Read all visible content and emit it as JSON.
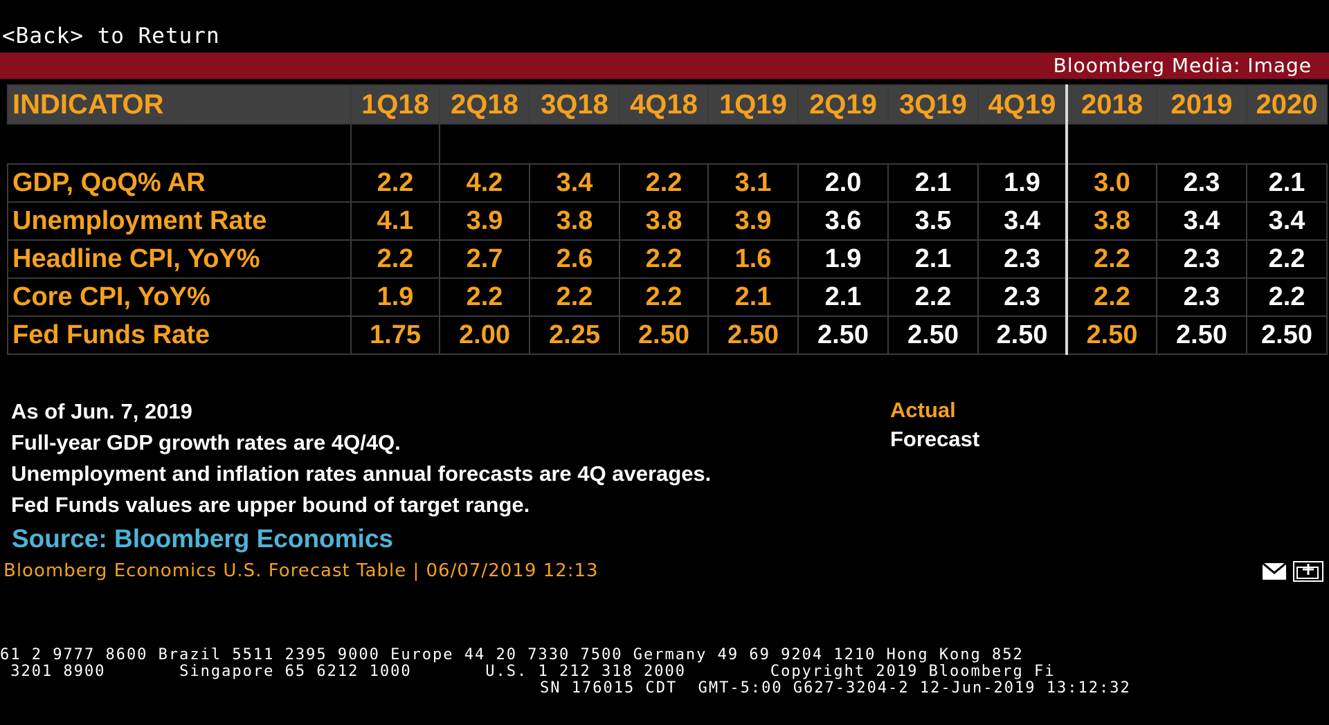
{
  "nav": {
    "back": "<Back> to Return"
  },
  "header": {
    "title": "Bloomberg Media: Image"
  },
  "table": {
    "columns": [
      "INDICATOR",
      "1Q18",
      "2Q18",
      "3Q18",
      "4Q18",
      "1Q19",
      "2Q19",
      "3Q19",
      "4Q19",
      "2018",
      "2019",
      "2020"
    ],
    "rows": [
      {
        "label": "GDP, QoQ% AR",
        "values": [
          "2.2",
          "4.2",
          "3.4",
          "2.2",
          "3.1",
          "2.0",
          "2.1",
          "1.9",
          "3.0",
          "2.3",
          "2.1"
        ]
      },
      {
        "label": "Unemployment Rate",
        "values": [
          "4.1",
          "3.9",
          "3.8",
          "3.8",
          "3.9",
          "3.6",
          "3.5",
          "3.4",
          "3.8",
          "3.4",
          "3.4"
        ]
      },
      {
        "label": "Headline CPI, YoY%",
        "values": [
          "2.2",
          "2.7",
          "2.6",
          "2.2",
          "1.6",
          "1.9",
          "2.1",
          "2.3",
          "2.2",
          "2.3",
          "2.2"
        ]
      },
      {
        "label": "Core CPI, YoY%",
        "values": [
          "1.9",
          "2.2",
          "2.2",
          "2.2",
          "2.1",
          "2.1",
          "2.2",
          "2.3",
          "2.2",
          "2.3",
          "2.2"
        ]
      },
      {
        "label": "Fed Funds Rate",
        "values": [
          "1.75",
          "2.00",
          "2.25",
          "2.50",
          "2.50",
          "2.50",
          "2.50",
          "2.50",
          "2.50",
          "2.50",
          "2.50"
        ]
      }
    ],
    "forecast_columns": [
      5,
      6,
      7,
      9,
      10
    ]
  },
  "notes": [
    "As of Jun. 7, 2019",
    "Full-year GDP growth rates are 4Q/4Q.",
    "Unemployment and inflation rates annual forecasts are 4Q averages.",
    "Fed Funds values are upper bound of target range."
  ],
  "legend": {
    "actual": "Actual",
    "forecast": "Forecast"
  },
  "source": "Source: Bloomberg Economics",
  "caption": "Bloomberg Economics U.S. Forecast Table | 06/07/2019 12:13",
  "ticker": {
    "line1": "61 2 9777 8600 Brazil 5511 2395 9000 Europe 44 20 7330 7500 Germany 49 69 9204 1210 Hong Kong 852",
    "line2": " 3201 8900       Singapore 65 6212 1000       U.S. 1 212 318 2000        Copyright 2019 Bloomberg Fi",
    "line3": "SN 176015 CDT  GMT-5:00 G627-3204-2 12-Jun-2019 13:12:32"
  },
  "colors": {
    "actual": "#f4a11d",
    "forecast": "#ffffff",
    "titlebar": "#8a0f1e",
    "source": "#4fb3d6"
  },
  "icons": [
    "mail-icon",
    "add-panel-icon"
  ]
}
